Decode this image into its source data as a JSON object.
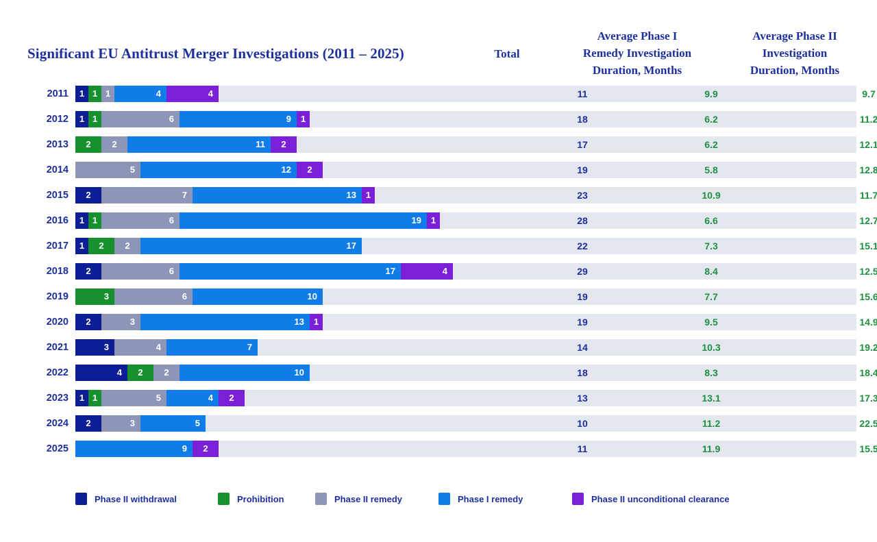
{
  "title": "Significant EU Antitrust Merger Investigations (2011 – 2025)",
  "columns": {
    "total": "Total",
    "phase1_avg": "Average Phase I\nRemedy Investigation\nDuration, Months",
    "phase2_avg": "Average Phase II\nInvestigation\nDuration, Months"
  },
  "colors": {
    "phase2_withdrawal": "#0b1e96",
    "prohibition": "#16912d",
    "phase2_remedy": "#8d95b8",
    "phase1_remedy": "#0f7ce8",
    "phase2_unconditional_clearance": "#7b1fd9",
    "row_track": "#e4e7ee",
    "navy_text": "#1d2f9e",
    "green_text": "#1d9040"
  },
  "legend": [
    {
      "label": "Phase II withdrawal",
      "key": "phase2_withdrawal",
      "color": "#0b1e96"
    },
    {
      "label": "Prohibition",
      "key": "prohibition",
      "color": "#16912d"
    },
    {
      "label": "Phase II remedy",
      "key": "phase2_remedy",
      "color": "#8d95b8"
    },
    {
      "label": "Phase I remedy",
      "key": "phase1_remedy",
      "color": "#0f7ce8"
    },
    {
      "label": "Phase II unconditional clearance",
      "key": "phase2_unconditional_clearance",
      "color": "#7b1fd9"
    }
  ],
  "chart_data": {
    "type": "bar",
    "orientation": "horizontal",
    "stacked": true,
    "title": "Significant EU Antitrust Merger Investigations (2011 – 2025)",
    "categories": [
      "2011",
      "2012",
      "2013",
      "2014",
      "2015",
      "2016",
      "2017",
      "2018",
      "2019",
      "2020",
      "2021",
      "2022",
      "2023",
      "2024",
      "2025"
    ],
    "series": [
      {
        "name": "Phase II withdrawal",
        "key": "phase2_withdrawal",
        "color": "#0b1e96",
        "values": [
          1,
          1,
          0,
          0,
          2,
          1,
          1,
          2,
          0,
          2,
          3,
          4,
          1,
          2,
          0
        ]
      },
      {
        "name": "Prohibition",
        "key": "prohibition",
        "color": "#16912d",
        "values": [
          1,
          1,
          2,
          0,
          0,
          1,
          2,
          0,
          3,
          0,
          0,
          2,
          1,
          0,
          0
        ]
      },
      {
        "name": "Phase II remedy",
        "key": "phase2_remedy",
        "color": "#8d95b8",
        "values": [
          1,
          6,
          2,
          5,
          7,
          6,
          2,
          6,
          6,
          3,
          4,
          2,
          5,
          3,
          0
        ]
      },
      {
        "name": "Phase I remedy",
        "key": "phase1_remedy",
        "color": "#0f7ce8",
        "values": [
          4,
          9,
          11,
          12,
          13,
          19,
          17,
          17,
          10,
          13,
          7,
          10,
          4,
          5,
          9
        ]
      },
      {
        "name": "Phase II unconditional clearance",
        "key": "phase2_unconditional_clearance",
        "color": "#7b1fd9",
        "values": [
          4,
          1,
          2,
          2,
          1,
          1,
          0,
          4,
          0,
          1,
          0,
          0,
          2,
          0,
          2
        ]
      }
    ],
    "totals": [
      11,
      18,
      17,
      19,
      23,
      28,
      22,
      29,
      19,
      19,
      14,
      18,
      13,
      10,
      11
    ],
    "avg_phase1_remedy_duration_months": [
      9.9,
      6.2,
      6.2,
      5.8,
      10.9,
      6.6,
      7.3,
      8.4,
      7.7,
      9.5,
      10.3,
      8.3,
      13.1,
      11.2,
      11.9
    ],
    "avg_phase2_duration_months": [
      9.7,
      11.2,
      12.1,
      12.8,
      11.7,
      12.7,
      15.1,
      12.5,
      15.6,
      14.9,
      19.2,
      18.4,
      17.3,
      22.5,
      15.5
    ],
    "value_labels_shown_on_segments": true,
    "grid": false,
    "legend_position": "bottom"
  }
}
